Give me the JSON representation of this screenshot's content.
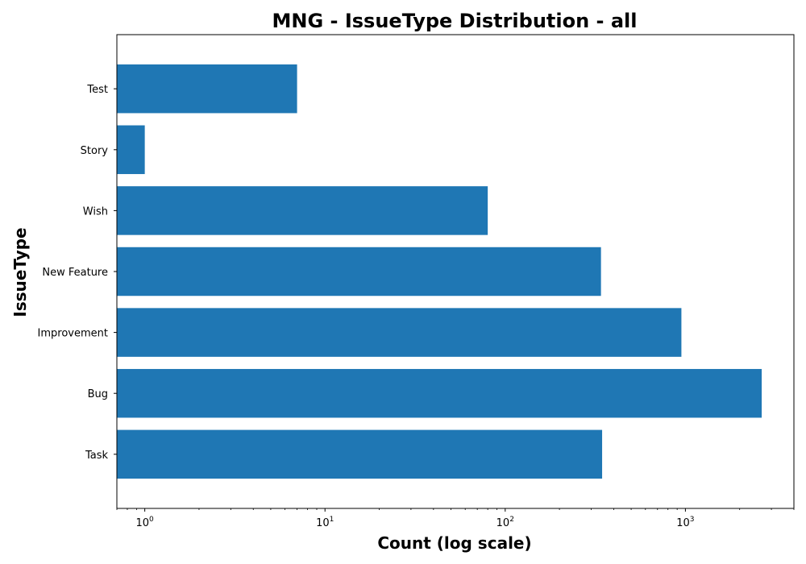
{
  "chart_data": {
    "type": "bar",
    "orientation": "horizontal",
    "title": "MNG - IssueType Distribution - all",
    "xlabel": "Count (log scale)",
    "ylabel": "IssueType",
    "x_scale": "log",
    "xlim": [
      0.7,
      4000
    ],
    "x_tick_values": [
      1,
      10,
      100,
      1000
    ],
    "x_tick_labels": [
      {
        "base": "10",
        "exp": "0"
      },
      {
        "base": "10",
        "exp": "1"
      },
      {
        "base": "10",
        "exp": "2"
      },
      {
        "base": "10",
        "exp": "3"
      }
    ],
    "categories": [
      "Task",
      "Bug",
      "Improvement",
      "New Feature",
      "Wish",
      "Story",
      "Test"
    ],
    "values": [
      345,
      2650,
      950,
      340,
      80,
      1,
      7
    ],
    "bar_color": "#1f77b4",
    "grid": false,
    "legend": false
  }
}
